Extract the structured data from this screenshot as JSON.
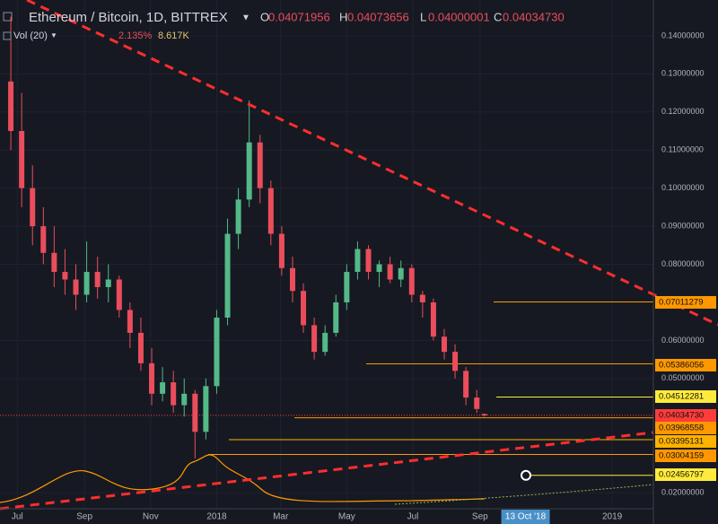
{
  "chart_data": {
    "type": "candlestick",
    "title": "Ethereum / Bitcoin, 1D, BITTREX",
    "ohlc": [
      {
        "name": "O",
        "value": 0.04071956,
        "label": "0.04071956"
      },
      {
        "name": "H",
        "value": 0.04073656,
        "label": "0.04073656"
      },
      {
        "name": "L",
        "value": 0.04000001,
        "label": "0.04000001"
      },
      {
        "name": "C",
        "value": 0.0403473,
        "label": "0.04034730"
      }
    ],
    "indicator": {
      "name": "Vol (20)",
      "values": [
        {
          "value": 2.135,
          "label": "2.135%"
        },
        {
          "value": 8617,
          "label": "8.617K"
        }
      ]
    },
    "up_color": "#53b987",
    "down_color": "#eb4d5c",
    "x": [
      "2017-06-25",
      "2017-07-05",
      "2017-07-15",
      "2017-07-25",
      "2017-08-04",
      "2017-08-14",
      "2017-08-24",
      "2017-09-03",
      "2017-09-13",
      "2017-09-23",
      "2017-10-03",
      "2017-10-13",
      "2017-10-23",
      "2017-11-02",
      "2017-11-12",
      "2017-11-22",
      "2017-12-02",
      "2017-12-12",
      "2017-12-22",
      "2018-01-01",
      "2018-01-11",
      "2018-01-21",
      "2018-01-31",
      "2018-02-10",
      "2018-02-20",
      "2018-03-02",
      "2018-03-12",
      "2018-03-22",
      "2018-04-01",
      "2018-04-11",
      "2018-04-21",
      "2018-05-01",
      "2018-05-11",
      "2018-05-21",
      "2018-05-31",
      "2018-06-10",
      "2018-06-20",
      "2018-06-30",
      "2018-07-10",
      "2018-07-20",
      "2018-07-30",
      "2018-08-09",
      "2018-08-19",
      "2018-08-29",
      "2018-09-05"
    ],
    "open": [
      0.128,
      0.115,
      0.1,
      0.09,
      0.083,
      0.078,
      0.076,
      0.072,
      0.078,
      0.074,
      0.076,
      0.068,
      0.062,
      0.054,
      0.046,
      0.049,
      0.043,
      0.046,
      0.036,
      0.048,
      0.066,
      0.088,
      0.097,
      0.112,
      0.1,
      0.088,
      0.079,
      0.073,
      0.064,
      0.057,
      0.062,
      0.07,
      0.078,
      0.084,
      0.078,
      0.08,
      0.076,
      0.079,
      0.072,
      0.07,
      0.061,
      0.057,
      0.052,
      0.045,
      0.0407
    ],
    "high": [
      0.145,
      0.125,
      0.106,
      0.095,
      0.09,
      0.084,
      0.08,
      0.086,
      0.082,
      0.08,
      0.077,
      0.07,
      0.066,
      0.058,
      0.053,
      0.052,
      0.05,
      0.047,
      0.05,
      0.068,
      0.092,
      0.1,
      0.123,
      0.114,
      0.102,
      0.09,
      0.082,
      0.075,
      0.066,
      0.064,
      0.072,
      0.08,
      0.086,
      0.085,
      0.081,
      0.082,
      0.081,
      0.08,
      0.073,
      0.071,
      0.063,
      0.059,
      0.053,
      0.047,
      0.0408
    ],
    "low": [
      0.11,
      0.095,
      0.085,
      0.08,
      0.074,
      0.072,
      0.068,
      0.07,
      0.071,
      0.07,
      0.066,
      0.058,
      0.052,
      0.043,
      0.044,
      0.041,
      0.04,
      0.029,
      0.034,
      0.046,
      0.064,
      0.084,
      0.095,
      0.096,
      0.085,
      0.077,
      0.07,
      0.062,
      0.055,
      0.056,
      0.061,
      0.068,
      0.076,
      0.076,
      0.074,
      0.075,
      0.074,
      0.07,
      0.066,
      0.06,
      0.055,
      0.05,
      0.043,
      0.041,
      0.04
    ],
    "close": [
      0.115,
      0.1,
      0.09,
      0.083,
      0.078,
      0.076,
      0.072,
      0.078,
      0.074,
      0.076,
      0.068,
      0.062,
      0.054,
      0.046,
      0.049,
      0.043,
      0.046,
      0.036,
      0.048,
      0.066,
      0.088,
      0.097,
      0.112,
      0.1,
      0.088,
      0.079,
      0.073,
      0.064,
      0.057,
      0.062,
      0.07,
      0.078,
      0.084,
      0.078,
      0.08,
      0.076,
      0.079,
      0.072,
      0.07,
      0.061,
      0.057,
      0.052,
      0.045,
      0.042,
      0.0403
    ],
    "xlim": [
      "2017-06-15",
      "2019-02-08"
    ],
    "xticks": [
      {
        "value": "2017-07-01",
        "label": "Jul"
      },
      {
        "value": "2017-09-01",
        "label": "Sep"
      },
      {
        "value": "2017-11-01",
        "label": "Nov"
      },
      {
        "value": "2018-01-01",
        "label": "2018"
      },
      {
        "value": "2018-03-01",
        "label": "Mar"
      },
      {
        "value": "2018-05-01",
        "label": "May"
      },
      {
        "value": "2018-07-01",
        "label": "Jul"
      },
      {
        "value": "2018-09-01",
        "label": "Sep"
      },
      {
        "value": "2019-01-01",
        "label": "2019"
      }
    ],
    "crosshair_x": {
      "value": "2018-10-13",
      "label": "13 Oct '18"
    },
    "ylim": [
      0.0158,
      0.1494
    ],
    "yticks": [
      {
        "value": 0.14,
        "label": "0.14000000"
      },
      {
        "value": 0.13,
        "label": "0.13000000"
      },
      {
        "value": 0.12,
        "label": "0.12000000"
      },
      {
        "value": 0.11,
        "label": "0.11000000"
      },
      {
        "value": 0.1,
        "label": "0.10000000"
      },
      {
        "value": 0.09,
        "label": "0.09000000"
      },
      {
        "value": 0.08,
        "label": "0.08000000"
      },
      {
        "value": 0.06,
        "label": "0.06000000"
      },
      {
        "value": 0.05,
        "label": "0.05000000"
      },
      {
        "value": 0.02,
        "label": "0.02000000"
      }
    ],
    "grid": true,
    "price_levels": [
      {
        "value": 0.07011279,
        "label": "0.07011279",
        "color": "#ff9800"
      },
      {
        "value": 0.05386056,
        "label": "0.05386056",
        "color": "#ff9800"
      },
      {
        "value": 0.04512281,
        "label": "0.04512281",
        "color": "#ffeb3b"
      },
      {
        "value": 0.0403473,
        "label": "0.04034730",
        "color": "#ff3b3b"
      },
      {
        "value": 0.03968558,
        "label": "0.03968558",
        "color": "#ff9800"
      },
      {
        "value": 0.03395131,
        "label": "0.03395131",
        "color": "#ffb300"
      },
      {
        "value": 0.03004159,
        "label": "0.03004159",
        "color": "#ff9800"
      },
      {
        "value": 0.02456797,
        "label": "0.02456797",
        "color": "#ffeb3b"
      }
    ]
  }
}
